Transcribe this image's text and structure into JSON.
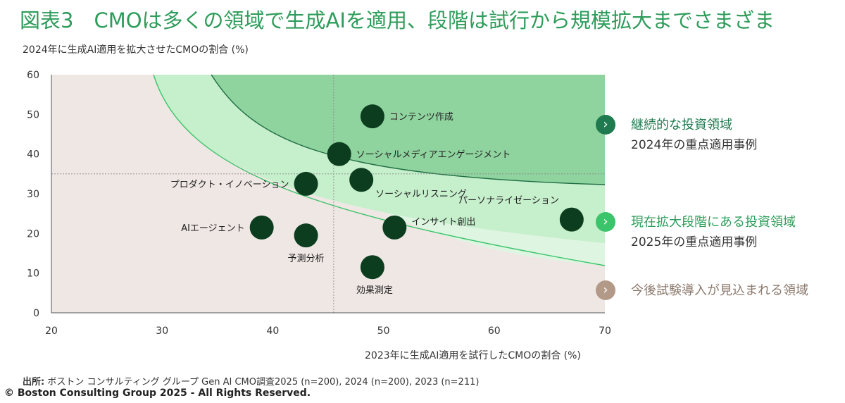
{
  "title": "図表3　CMOは多くの領域で生成AIを適用、段階は試行から規模拡大までさまざま",
  "subtitle": "2024年に生成AI適用を拡大させたCMOの割合 (%)",
  "chart_data": {
    "type": "scatter",
    "xlabel": "2023年に生成AI適用を試行したCMOの割合 (%)",
    "ylabel": "2024年に生成AI適用を拡大させたCMOの割合 (%)",
    "xlim": [
      20,
      70
    ],
    "ylim": [
      0,
      60
    ],
    "xticks": [
      20,
      30,
      40,
      50,
      60,
      70
    ],
    "yticks": [
      0,
      10,
      20,
      30,
      40,
      50,
      60
    ],
    "reference_lines": {
      "x": 45.5,
      "y": 35
    },
    "points": [
      {
        "label": "コンテンツ作成",
        "x": 49,
        "y": 49.5
      },
      {
        "label": "ソーシャルメディアエンゲージメント",
        "x": 46,
        "y": 40
      },
      {
        "label": "ソーシャルリスニング",
        "x": 48,
        "y": 33.5
      },
      {
        "label": "プロダクト・イノベーション",
        "x": 43,
        "y": 32.5
      },
      {
        "label": "パーソナライゼーション",
        "x": 67,
        "y": 23.5
      },
      {
        "label": "インサイト創出",
        "x": 51,
        "y": 21.5
      },
      {
        "label": "AIエージェント",
        "x": 39,
        "y": 21.5
      },
      {
        "label": "予測分析",
        "x": 43,
        "y": 19.5
      },
      {
        "label": "効果測定",
        "x": 49,
        "y": 11.5
      }
    ],
    "zones": [
      {
        "title": "継続的な投資領域",
        "subtitle": "2024年の重点適用事例",
        "color": "#1f7a4f"
      },
      {
        "title": "現在拡大段階にある投資領域",
        "subtitle": "2025年の重点適用事例",
        "color": "#3cc46a"
      },
      {
        "title": "今後試験導入が見込まれる領域",
        "subtitle": "",
        "color": "#b39a88"
      }
    ]
  },
  "source_label": "出所:",
  "source_text": " ボストン コンサルティング グループ Gen AI CMO調査2025 (n=200), 2024 (n=200), 2023 (n=211)",
  "copyright": "© Boston Consulting Group 2025 - All Rights Reserved."
}
